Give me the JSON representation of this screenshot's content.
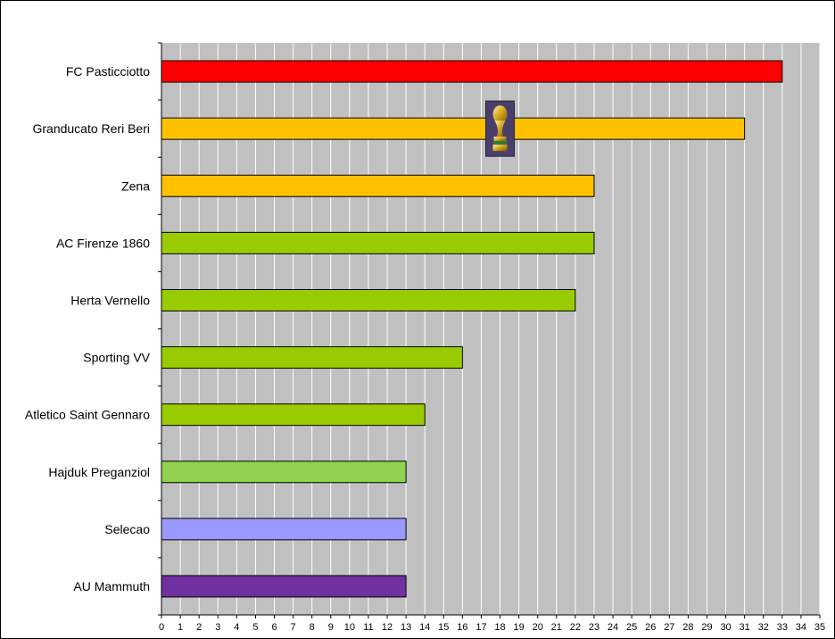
{
  "chart_data": {
    "type": "bar",
    "orientation": "horizontal",
    "title": "",
    "xlabel": "",
    "ylabel": "",
    "xlim": [
      0,
      35
    ],
    "grid": "vertical",
    "legend": "none",
    "plot_background": "#c0c0c0",
    "categories": [
      "FC Pasticciotto",
      "Granducato Reri Beri",
      "Zena",
      "AC Firenze 1860",
      "Herta Vernello",
      "Sporting VV",
      "Atletico Saint Gennaro",
      "Hajduk Preganziol",
      "Selecao",
      "AU Mammuth"
    ],
    "values": [
      33,
      31,
      23,
      23,
      22,
      16,
      14,
      13,
      13,
      13
    ],
    "colors": [
      "#ff0000",
      "#ffc000",
      "#ffc000",
      "#99cc00",
      "#99cc00",
      "#99cc00",
      "#99cc00",
      "#92d050",
      "#9999ff",
      "#7030a0"
    ],
    "x_ticks": [
      "0",
      "1",
      "2",
      "3",
      "4",
      "5",
      "6",
      "7",
      "8",
      "9",
      "10",
      "11",
      "12",
      "13",
      "14",
      "15",
      "16",
      "17",
      "18",
      "19",
      "20",
      "21",
      "22",
      "23",
      "24",
      "25",
      "26",
      "27",
      "28",
      "29",
      "30",
      "31",
      "32",
      "33",
      "34",
      "35"
    ],
    "annotation": {
      "icon": "trophy-icon",
      "x": 18,
      "category": "Granducato Reri Beri"
    }
  }
}
